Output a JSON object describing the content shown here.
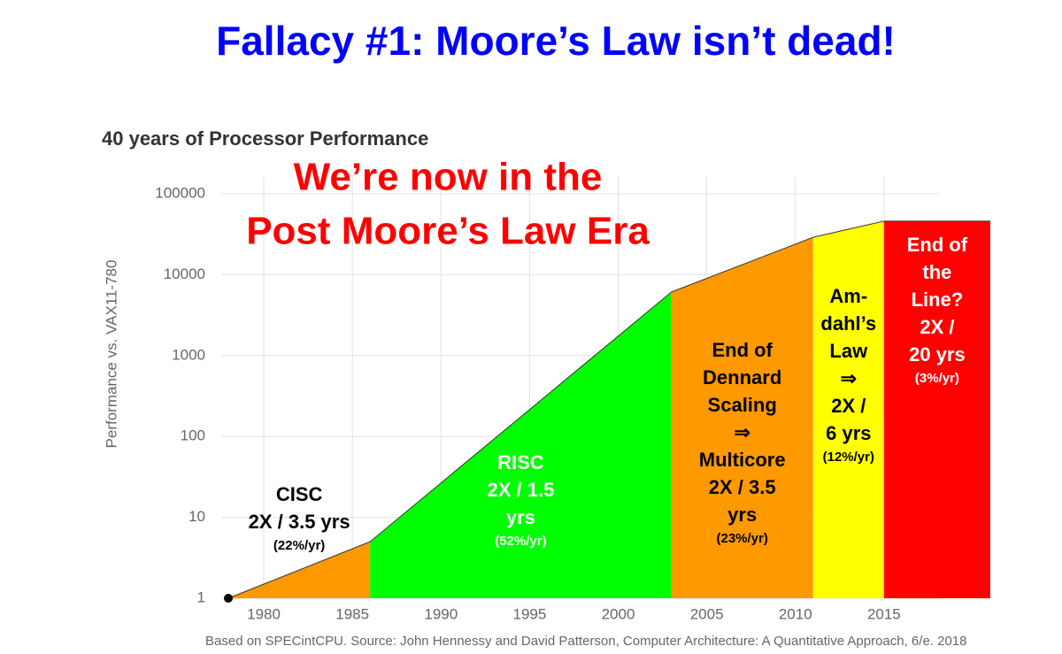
{
  "slide": {
    "title": "Fallacy  #1: Moore’s Law isn’t dead!",
    "overlay": [
      "We’re now in the",
      "Post Moore’s Law Era"
    ]
  },
  "chart_data": {
    "type": "area",
    "title": "40 years of Processor Performance",
    "ylabel": "Performance vs. VAX11-780",
    "source": "Based on SPECintCPU. Source: John Hennessy and David Patterson, Computer Architecture: A Quantitative Approach, 6/e. 2018",
    "ylog": true,
    "grid": true,
    "x": [
      1978,
      1986,
      2003,
      2011,
      2015,
      2021
    ],
    "values": [
      1,
      5,
      6100,
      29000,
      46000,
      46000
    ],
    "xlim": [
      1977.5,
      2021
    ],
    "xticks": [
      1980,
      1985,
      1990,
      1995,
      2000,
      2005,
      2010,
      2015
    ],
    "ylim": [
      1,
      100000
    ],
    "yticks": [
      1,
      10,
      100,
      1000,
      10000,
      100000
    ],
    "regions": [
      {
        "color": "#ff9900",
        "text_color": "#000000",
        "lines": [
          "CISC",
          "2X / 3.5 yrs"
        ],
        "rate": "(22%/yr)"
      },
      {
        "color": "#00ff00",
        "text_color": "#ffffff",
        "lines": [
          "RISC",
          "2X / 1.5",
          "yrs"
        ],
        "rate": "(52%/yr)"
      },
      {
        "color": "#ff9900",
        "text_color": "#000000",
        "lines": [
          "End of",
          "Dennard",
          "Scaling",
          "⇒",
          "Multicore",
          "2X / 3.5",
          "yrs"
        ],
        "rate": "(23%/yr)"
      },
      {
        "color": "#ffff00",
        "text_color": "#000000",
        "lines": [
          "Am-",
          "dahl’s",
          "Law",
          "⇒",
          "2X /",
          "6 yrs"
        ],
        "rate": "(12%/yr)"
      },
      {
        "color": "#ff0000",
        "text_color": "#ffffff",
        "lines": [
          "End of",
          "the",
          "Line?",
          "2X /",
          "20 yrs"
        ],
        "rate": "(3%/yr)"
      }
    ]
  }
}
